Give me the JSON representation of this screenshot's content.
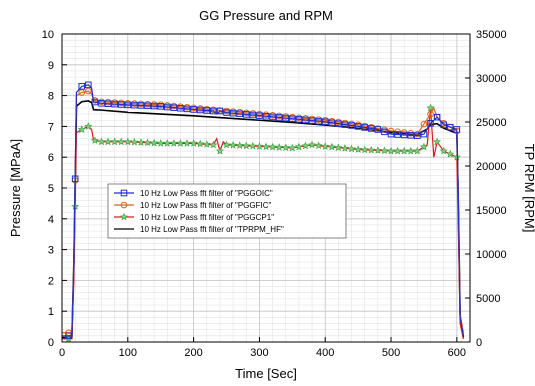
{
  "chart_data": {
    "type": "line",
    "title": "GG Pressure and RPM",
    "xlabel": "Time [Sec]",
    "ylabel": "Pressure [MPaA]",
    "y2label": "TP RPM [RPM]",
    "xlim": [
      0,
      620
    ],
    "ylim": [
      0,
      10
    ],
    "y2lim": [
      0,
      35000
    ],
    "x_ticks": [
      0,
      100,
      200,
      300,
      400,
      500,
      600
    ],
    "y_ticks": [
      0,
      1,
      2,
      3,
      4,
      5,
      6,
      7,
      8,
      9,
      10
    ],
    "y2_ticks": [
      0,
      5000,
      10000,
      15000,
      20000,
      25000,
      30000,
      35000
    ],
    "grid": true,
    "legend_position": "middle-left",
    "series": [
      {
        "name": "10 Hz Low Pass fft filter of \"PGGOIC\"",
        "axis": "left",
        "color": "#1f2fd0",
        "marker": "square",
        "x": [
          0,
          15,
          18,
          22,
          30,
          40,
          45,
          48,
          60,
          100,
          150,
          200,
          230,
          235,
          240,
          250,
          300,
          350,
          400,
          450,
          480,
          500,
          540,
          550,
          560,
          570,
          580,
          600,
          602,
          605,
          610
        ],
        "y": [
          0.2,
          0.2,
          2.5,
          8.1,
          8.3,
          8.35,
          8.25,
          7.8,
          7.75,
          7.7,
          7.65,
          7.55,
          7.5,
          7.4,
          7.5,
          7.45,
          7.35,
          7.25,
          7.15,
          7.0,
          6.9,
          6.75,
          6.7,
          6.75,
          7.1,
          7.3,
          7.05,
          6.9,
          5.0,
          0.8,
          0.2
        ]
      },
      {
        "name": "10 Hz Low Pass fft filter of \"PGGFIC\"",
        "axis": "left",
        "color": "#e0621a",
        "marker": "circle",
        "x": [
          0,
          15,
          18,
          22,
          30,
          40,
          45,
          48,
          60,
          100,
          150,
          200,
          250,
          300,
          350,
          400,
          450,
          500,
          540,
          560,
          565,
          570,
          580,
          600,
          602,
          605,
          610
        ],
        "y": [
          0.3,
          0.3,
          2.5,
          8.0,
          8.1,
          8.15,
          8.05,
          7.85,
          7.8,
          7.75,
          7.7,
          7.6,
          7.5,
          7.4,
          7.3,
          7.2,
          7.05,
          6.85,
          6.75,
          7.4,
          7.6,
          7.3,
          7.1,
          6.85,
          5.0,
          0.9,
          0.3
        ]
      },
      {
        "name": "10 Hz Low Pass fft filter of \"PGGCP1\"",
        "axis": "left",
        "color": "#e01818",
        "marker": "star",
        "x": [
          0,
          15,
          18,
          22,
          30,
          40,
          45,
          48,
          60,
          100,
          150,
          200,
          230,
          235,
          240,
          245,
          250,
          300,
          350,
          380,
          400,
          450,
          500,
          540,
          555,
          560,
          565,
          570,
          580,
          600,
          602,
          605,
          610
        ],
        "y": [
          0.1,
          0.1,
          2.0,
          6.8,
          6.9,
          7.0,
          6.9,
          6.55,
          6.5,
          6.5,
          6.45,
          6.45,
          6.4,
          6.6,
          6.2,
          6.5,
          6.4,
          6.35,
          6.3,
          6.4,
          6.35,
          6.25,
          6.2,
          6.2,
          6.4,
          7.6,
          6.0,
          6.5,
          6.2,
          6.0,
          4.0,
          0.6,
          0.1
        ]
      },
      {
        "name": "10 Hz Low Pass fft filter of \"TPRPM_HF\"",
        "axis": "right",
        "color": "#000000",
        "marker": "none",
        "x": [
          0,
          15,
          18,
          22,
          30,
          40,
          45,
          48,
          60,
          100,
          150,
          200,
          250,
          300,
          350,
          400,
          450,
          500,
          540,
          555,
          560,
          570,
          580,
          600,
          602,
          605,
          610
        ],
        "y": [
          500,
          500,
          9000,
          26800,
          27300,
          27400,
          27200,
          26400,
          26350,
          26100,
          25900,
          25700,
          25450,
          25200,
          24950,
          24650,
          24300,
          23800,
          23600,
          24200,
          24700,
          24800,
          24300,
          23700,
          17000,
          3000,
          500
        ]
      }
    ]
  }
}
